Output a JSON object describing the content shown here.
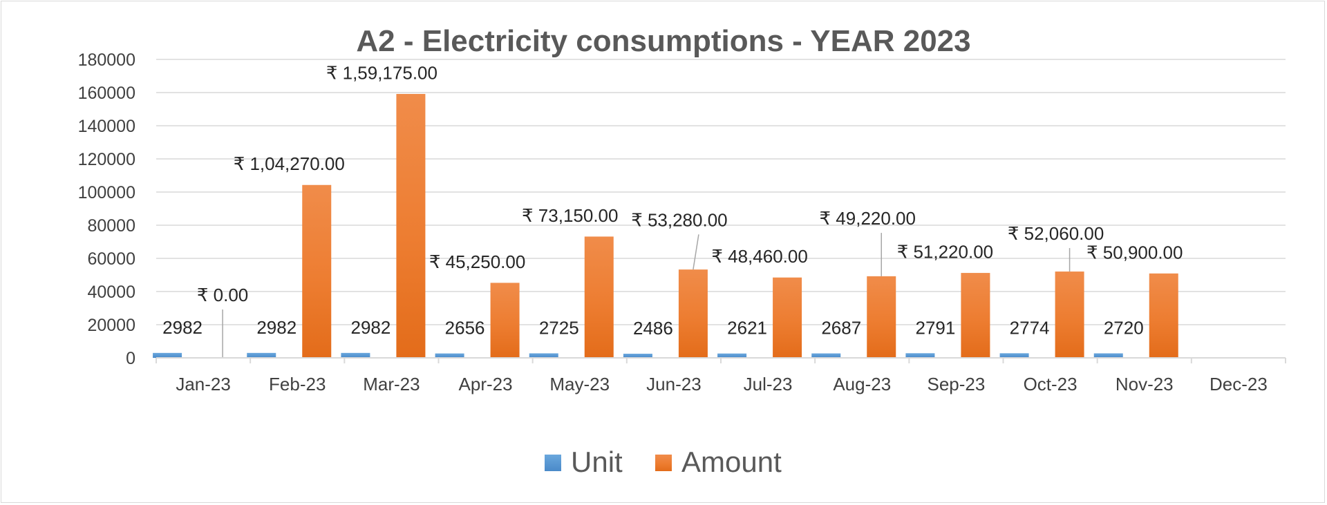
{
  "chart_data": {
    "type": "bar",
    "title": "A2 - Electricity consumptions - YEAR 2023",
    "xlabel": "",
    "ylabel": "",
    "ylim": [
      0,
      180000
    ],
    "yticks": [
      0,
      20000,
      40000,
      60000,
      80000,
      100000,
      120000,
      140000,
      160000,
      180000
    ],
    "grid": true,
    "legend_position": "bottom",
    "categories": [
      "Jan-23",
      "Feb-23",
      "Mar-23",
      "Apr-23",
      "May-23",
      "Jun-23",
      "Jul-23",
      "Aug-23",
      "Sep-23",
      "Oct-23",
      "Nov-23",
      "Dec-23"
    ],
    "series": [
      {
        "name": "Unit",
        "color": "#5b9bd5",
        "values": [
          2982,
          2982,
          2982,
          2656,
          2725,
          2486,
          2621,
          2687,
          2791,
          2774,
          2720,
          null
        ],
        "labels": [
          "2982",
          "2982",
          "2982",
          "2656",
          "2725",
          "2486",
          "2621",
          "2687",
          "2791",
          "2774",
          "2720",
          ""
        ]
      },
      {
        "name": "Amount",
        "color": "#ed7d31",
        "values": [
          0,
          104270,
          159175,
          45250,
          73150,
          53280,
          48460,
          49220,
          51220,
          52060,
          50900,
          null
        ],
        "labels": [
          "₹ 0.00",
          "₹ 1,04,270.00",
          "₹ 1,59,175.00",
          "₹ 45,250.00",
          "₹ 73,150.00",
          "₹ 53,280.00",
          "₹ 48,460.00",
          "₹ 49,220.00",
          "₹ 51,220.00",
          "₹ 52,060.00",
          "₹ 50,900.00",
          ""
        ]
      }
    ]
  }
}
